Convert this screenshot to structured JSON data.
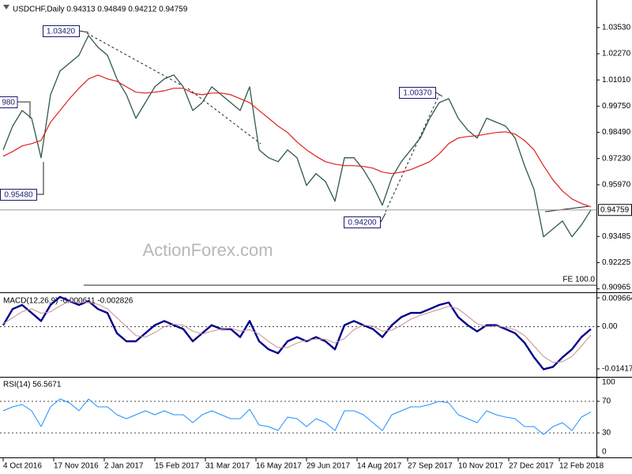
{
  "chart_data": [
    {
      "type": "line",
      "title": "USDCHF,Daily  0.94313 0.94849 0.94212 0.94759",
      "x": [
        0,
        6,
        12,
        18,
        24,
        30,
        36,
        42,
        48,
        54,
        60,
        66,
        72,
        78,
        84,
        90,
        96,
        102,
        108,
        114,
        120,
        126,
        132,
        138,
        144,
        150,
        156,
        162,
        168,
        174,
        180,
        186,
        192,
        198,
        204,
        210,
        216,
        222,
        228,
        234,
        240,
        246,
        252,
        258,
        264,
        270,
        276,
        282,
        288,
        294,
        300,
        306,
        312,
        318,
        324,
        330,
        336,
        342,
        348,
        354,
        360,
        366,
        372
      ],
      "xlim": [
        -2,
        375.5
      ],
      "ylim": [
        0.908,
        1.0474
      ],
      "yticks": [
        {
          "value": 1.0353,
          "label": "1.03530"
        },
        {
          "value": 1.0227,
          "label": "1.02270"
        },
        {
          "value": 1.0101,
          "label": "1.01010"
        },
        {
          "value": 0.9975,
          "label": "0.99750"
        },
        {
          "value": 0.9849,
          "label": "0.98490"
        },
        {
          "value": 0.9723,
          "label": "0.97230"
        },
        {
          "value": 0.9597,
          "label": "0.95970"
        },
        0.93485,
        0.92225,
        0.90965
      ],
      "series": [
        {
          "color": "#2e5a4a",
          "width": 1.3,
          "values": [
            0.9765,
            0.9879,
            0.9954,
            0.9917,
            0.9727,
            1.003,
            1.0144,
            1.0182,
            1.022,
            1.0315,
            1.0258,
            1.022,
            1.0106,
            1.003,
            0.9917,
            0.9992,
            1.0068,
            1.0106,
            1.0125,
            1.0068,
            0.9954,
            0.9992,
            1.0068,
            1.003,
            0.9992,
            0.9954,
            1.0068,
            0.9765,
            0.9727,
            0.9708,
            0.9765,
            0.9727,
            0.9594,
            0.9651,
            0.9613,
            0.9518,
            0.9727,
            0.9727,
            0.967,
            0.9594,
            0.9499,
            0.9632,
            0.9708,
            0.9765,
            0.9822,
            0.9917,
            0.9992,
            1.0011,
            0.9917,
            0.986,
            0.9822,
            0.9917,
            0.9898,
            0.9879,
            0.9822,
            0.9689,
            0.9575,
            0.9347,
            0.9385,
            0.9423,
            0.9347,
            0.9404,
            0.94759
          ]
        },
        {
          "color": "#e02020",
          "width": 1.2,
          "values": [
            0.9734,
            0.9757,
            0.9784,
            0.9795,
            0.981,
            0.9898,
            0.9954,
            1.0011,
            1.0061,
            1.0106,
            1.0125,
            1.0106,
            1.0095,
            1.0068,
            1.0042,
            1.0038,
            1.0042,
            1.0049,
            1.0061,
            1.0061,
            1.0038,
            1.003,
            1.0038,
            1.0038,
            1.003,
            1.0011,
            0.9992,
            0.9954,
            0.9917,
            0.9879,
            0.9848,
            0.9803,
            0.9765,
            0.9734,
            0.9708,
            0.9696,
            0.9689,
            0.9689,
            0.9685,
            0.9677,
            0.9658,
            0.9651,
            0.9658,
            0.967,
            0.9689,
            0.9708,
            0.9746,
            0.9795,
            0.9822,
            0.9829,
            0.9833,
            0.9841,
            0.9848,
            0.9852,
            0.9841,
            0.981,
            0.9765,
            0.9689,
            0.962,
            0.9567,
            0.9529,
            0.9507,
            0.9491
          ]
        }
      ],
      "last_price": 0.94759,
      "annotations": [
        "1.03420",
        "980",
        "0.95480",
        "0.94200",
        "1.00370",
        "FE 100.0"
      ],
      "watermark": "ActionForex.com"
    },
    {
      "type": "line",
      "title": "MACD(12,26,9) -0.000611 -0.002826",
      "x": [
        0,
        6,
        12,
        18,
        24,
        30,
        36,
        42,
        48,
        54,
        60,
        66,
        72,
        78,
        84,
        90,
        96,
        102,
        108,
        114,
        120,
        126,
        132,
        138,
        144,
        150,
        156,
        162,
        168,
        174,
        180,
        186,
        192,
        198,
        204,
        210,
        216,
        222,
        228,
        234,
        240,
        246,
        252,
        258,
        264,
        270,
        276,
        282,
        288,
        294,
        300,
        306,
        312,
        318,
        324,
        330,
        336,
        342,
        348,
        354,
        360,
        366,
        372
      ],
      "xlim": [
        -2,
        375.5
      ],
      "ylim": [
        -0.0171,
        0.011
      ],
      "yticks": [
        0.009664,
        {
          "value": 0,
          "label": "0.00"
        },
        -0.014171
      ],
      "series": [
        {
          "color": "#00008b",
          "width": 2.4,
          "values": [
            0.0005,
            0.0059,
            0.0073,
            0.0046,
            0.0019,
            0.0073,
            0.01,
            0.0086,
            0.0073,
            0.0086,
            0.0059,
            0.0046,
            -0.0022,
            -0.0049,
            -0.0049,
            -0.0022,
            0.0005,
            0.0019,
            0.0005,
            -0.0008,
            -0.0049,
            -0.0022,
            0.0005,
            -0.0008,
            -0.0008,
            -0.0035,
            0.0019,
            -0.0049,
            -0.0076,
            -0.0089,
            -0.0049,
            -0.0035,
            -0.0049,
            -0.0035,
            -0.0049,
            -0.0076,
            0.0005,
            0.0019,
            0.0005,
            -0.0008,
            -0.0035,
            0.0005,
            0.0032,
            0.0046,
            0.0046,
            0.0059,
            0.0073,
            0.0081,
            0.0032,
            0.0005,
            -0.0016,
            0.0005,
            0.0005,
            -0.0008,
            -0.0022,
            -0.0054,
            -0.0103,
            -0.0143,
            -0.0135,
            -0.0103,
            -0.0076,
            -0.0035,
            -0.0008
          ]
        },
        {
          "color": "#c89090",
          "width": 1,
          "values": [
            0.001,
            0.003,
            0.005,
            0.006,
            0.0045,
            0.005,
            0.007,
            0.0085,
            0.008,
            0.0082,
            0.0075,
            0.006,
            0.003,
            0,
            -0.003,
            -0.0035,
            -0.002,
            0,
            0.0008,
            0.0005,
            -0.0015,
            -0.0025,
            -0.0015,
            -0.0008,
            -0.0005,
            -0.0015,
            -0.001,
            -0.0025,
            -0.005,
            -0.007,
            -0.007,
            -0.0055,
            -0.0045,
            -0.0042,
            -0.0042,
            -0.0055,
            -0.004,
            -0.001,
            0.0005,
            0.0002,
            -0.0015,
            -0.0012,
            0.0005,
            0.0025,
            0.0038,
            0.0048,
            0.0058,
            0.0068,
            0.006,
            0.0035,
            0.001,
            0,
            0.0002,
            -0.0002,
            -0.001,
            -0.003,
            -0.0065,
            -0.01,
            -0.012,
            -0.0118,
            -0.01,
            -0.0065,
            -0.0028
          ]
        }
      ]
    },
    {
      "type": "line",
      "title": "RSI(14) 56.5671",
      "x": [
        0,
        6,
        12,
        18,
        24,
        30,
        36,
        42,
        48,
        54,
        60,
        66,
        72,
        78,
        84,
        90,
        96,
        102,
        108,
        114,
        120,
        126,
        132,
        138,
        144,
        150,
        156,
        162,
        168,
        174,
        180,
        186,
        192,
        198,
        204,
        210,
        216,
        222,
        228,
        234,
        240,
        246,
        252,
        258,
        264,
        270,
        276,
        282,
        288,
        294,
        300,
        306,
        312,
        318,
        324,
        330,
        336,
        342,
        348,
        354,
        360,
        366,
        372
      ],
      "xlim": [
        -2,
        375.5
      ],
      "ylim": [
        0,
        100
      ],
      "yticks": [
        100,
        70,
        30,
        0
      ],
      "xticks": [
        {
          "value": 0,
          "label": "4 Oct 2016"
        },
        {
          "value": 32,
          "label": "17 Nov 2016"
        },
        {
          "value": 64,
          "label": "2 Jan 2017"
        },
        {
          "value": 96,
          "label": "15 Feb 2017"
        },
        {
          "value": 128,
          "label": "31 Mar 2017"
        },
        {
          "value": 160,
          "label": "16 May 2017"
        },
        {
          "value": 192,
          "label": "29 Jun 2017"
        },
        {
          "value": 224,
          "label": "14 Aug 2017"
        },
        {
          "value": 256,
          "label": "27 Sep 2017"
        },
        {
          "value": 288,
          "label": "10 Nov 2017"
        },
        {
          "value": 320,
          "label": "27 Dec 2017"
        },
        {
          "value": 352,
          "label": "12 Feb 2018"
        }
      ],
      "series": [
        {
          "color": "#1e90ff",
          "width": 1,
          "values": [
            58,
            63,
            66,
            58,
            38,
            63,
            73,
            68,
            58,
            73,
            63,
            63,
            53,
            48,
            53,
            58,
            53,
            58,
            53,
            53,
            43,
            53,
            58,
            53,
            48,
            48,
            60,
            40,
            38,
            33,
            50,
            48,
            38,
            48,
            43,
            33,
            58,
            58,
            53,
            43,
            33,
            53,
            58,
            63,
            63,
            66,
            70,
            68,
            53,
            48,
            43,
            58,
            53,
            50,
            48,
            38,
            38,
            28,
            38,
            43,
            33,
            50,
            56.5671
          ]
        }
      ]
    }
  ]
}
